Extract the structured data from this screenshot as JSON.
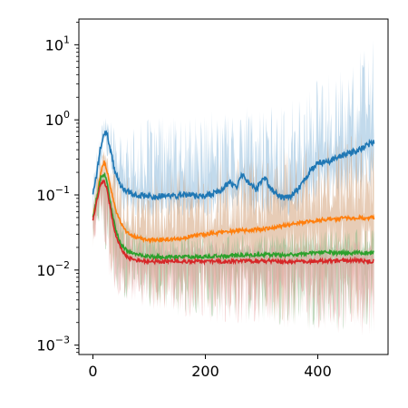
{
  "chart_data": {
    "type": "line",
    "title": "",
    "xlabel": "",
    "ylabel": "",
    "xlim": [
      -25,
      525
    ],
    "ylim": [
      0.00075,
      22
    ],
    "yscale": "log",
    "grid": false,
    "legend": null,
    "x_ticks": [
      {
        "value": 0,
        "label": "0"
      },
      {
        "value": 200,
        "label": "200"
      },
      {
        "value": 400,
        "label": "400"
      }
    ],
    "y_ticks": [
      {
        "value": 10,
        "base": "10",
        "exp": "1"
      },
      {
        "value": 1,
        "base": "10",
        "exp": "0"
      },
      {
        "value": 0.1,
        "base": "10",
        "exp": "−1"
      },
      {
        "value": 0.01,
        "base": "10",
        "exp": "−2"
      },
      {
        "value": 0.001,
        "base": "10",
        "exp": "−3"
      }
    ],
    "x_range": [
      0,
      500
    ],
    "series": [
      {
        "color": "#1f77b4",
        "band_color": "#aecde6",
        "points": [
          [
            0,
            0.1
          ],
          [
            8,
            0.22
          ],
          [
            14,
            0.45
          ],
          [
            20,
            0.68
          ],
          [
            26,
            0.6
          ],
          [
            32,
            0.36
          ],
          [
            40,
            0.2
          ],
          [
            50,
            0.13
          ],
          [
            60,
            0.11
          ],
          [
            80,
            0.1
          ],
          [
            100,
            0.095
          ],
          [
            130,
            0.097
          ],
          [
            160,
            0.1
          ],
          [
            190,
            0.095
          ],
          [
            210,
            0.1
          ],
          [
            230,
            0.12
          ],
          [
            245,
            0.15
          ],
          [
            255,
            0.12
          ],
          [
            265,
            0.19
          ],
          [
            275,
            0.15
          ],
          [
            290,
            0.12
          ],
          [
            305,
            0.17
          ],
          [
            320,
            0.11
          ],
          [
            340,
            0.09
          ],
          [
            355,
            0.1
          ],
          [
            370,
            0.13
          ],
          [
            385,
            0.2
          ],
          [
            400,
            0.27
          ],
          [
            420,
            0.28
          ],
          [
            440,
            0.33
          ],
          [
            460,
            0.37
          ],
          [
            480,
            0.42
          ],
          [
            500,
            0.52
          ]
        ],
        "band_upper": [
          [
            0,
            0.2
          ],
          [
            14,
            0.9
          ],
          [
            20,
            1.3
          ],
          [
            30,
            1.0
          ],
          [
            50,
            0.6
          ],
          [
            80,
            0.9
          ],
          [
            120,
            1.2
          ],
          [
            160,
            1.1
          ],
          [
            200,
            1.3
          ],
          [
            250,
            1.8
          ],
          [
            300,
            1.5
          ],
          [
            350,
            2.0
          ],
          [
            400,
            3.5
          ],
          [
            450,
            5.0
          ],
          [
            480,
            9.0
          ],
          [
            500,
            12.0
          ]
        ],
        "band_lower": [
          [
            0,
            0.05
          ],
          [
            14,
            0.2
          ],
          [
            20,
            0.35
          ],
          [
            30,
            0.2
          ],
          [
            50,
            0.06
          ],
          [
            80,
            0.05
          ],
          [
            120,
            0.05
          ],
          [
            160,
            0.05
          ],
          [
            200,
            0.05
          ],
          [
            250,
            0.06
          ],
          [
            300,
            0.05
          ],
          [
            350,
            0.05
          ],
          [
            400,
            0.08
          ],
          [
            450,
            0.09
          ],
          [
            500,
            0.12
          ]
        ]
      },
      {
        "color": "#ff7f0e",
        "band_color": "#d4a27a",
        "points": [
          [
            0,
            0.05
          ],
          [
            8,
            0.1
          ],
          [
            14,
            0.2
          ],
          [
            20,
            0.28
          ],
          [
            26,
            0.2
          ],
          [
            32,
            0.12
          ],
          [
            40,
            0.065
          ],
          [
            50,
            0.042
          ],
          [
            60,
            0.032
          ],
          [
            80,
            0.027
          ],
          [
            100,
            0.025
          ],
          [
            150,
            0.026
          ],
          [
            200,
            0.03
          ],
          [
            250,
            0.033
          ],
          [
            300,
            0.035
          ],
          [
            350,
            0.04
          ],
          [
            400,
            0.046
          ],
          [
            450,
            0.049
          ],
          [
            500,
            0.05
          ]
        ],
        "band_upper": [
          [
            0,
            0.12
          ],
          [
            14,
            0.35
          ],
          [
            20,
            0.4
          ],
          [
            30,
            0.3
          ],
          [
            50,
            0.2
          ],
          [
            100,
            0.2
          ],
          [
            200,
            0.3
          ],
          [
            300,
            0.4
          ],
          [
            400,
            0.5
          ],
          [
            450,
            0.8
          ],
          [
            500,
            1.0
          ]
        ],
        "band_lower": [
          [
            0,
            0.02
          ],
          [
            14,
            0.06
          ],
          [
            30,
            0.008
          ],
          [
            50,
            0.005
          ],
          [
            100,
            0.003
          ],
          [
            200,
            0.0025
          ],
          [
            300,
            0.002
          ],
          [
            400,
            0.0015
          ],
          [
            500,
            0.002
          ]
        ]
      },
      {
        "color": "#2ca02c",
        "band_color": "#8fb98a",
        "points": [
          [
            0,
            0.05
          ],
          [
            8,
            0.1
          ],
          [
            14,
            0.17
          ],
          [
            20,
            0.19
          ],
          [
            26,
            0.14
          ],
          [
            32,
            0.07
          ],
          [
            40,
            0.035
          ],
          [
            50,
            0.022
          ],
          [
            60,
            0.018
          ],
          [
            80,
            0.016
          ],
          [
            100,
            0.015
          ],
          [
            150,
            0.015
          ],
          [
            200,
            0.015
          ],
          [
            250,
            0.0155
          ],
          [
            300,
            0.016
          ],
          [
            350,
            0.016
          ],
          [
            400,
            0.017
          ],
          [
            450,
            0.017
          ],
          [
            500,
            0.017
          ]
        ],
        "band_upper": [
          [
            0,
            0.1
          ],
          [
            14,
            0.25
          ],
          [
            30,
            0.15
          ],
          [
            50,
            0.05
          ],
          [
            100,
            0.03
          ],
          [
            200,
            0.03
          ],
          [
            300,
            0.03
          ],
          [
            400,
            0.035
          ],
          [
            500,
            0.035
          ]
        ],
        "band_lower": [
          [
            0,
            0.02
          ],
          [
            14,
            0.05
          ],
          [
            30,
            0.006
          ],
          [
            50,
            0.004
          ],
          [
            100,
            0.003
          ],
          [
            200,
            0.002
          ],
          [
            300,
            0.002
          ],
          [
            400,
            0.0015
          ],
          [
            500,
            0.0015
          ]
        ]
      },
      {
        "color": "#d62728",
        "band_color": "#e8a4a4",
        "points": [
          [
            0,
            0.045
          ],
          [
            8,
            0.09
          ],
          [
            14,
            0.14
          ],
          [
            20,
            0.15
          ],
          [
            26,
            0.11
          ],
          [
            32,
            0.06
          ],
          [
            40,
            0.03
          ],
          [
            50,
            0.019
          ],
          [
            60,
            0.015
          ],
          [
            80,
            0.0135
          ],
          [
            100,
            0.013
          ],
          [
            150,
            0.013
          ],
          [
            200,
            0.013
          ],
          [
            250,
            0.013
          ],
          [
            300,
            0.0132
          ],
          [
            350,
            0.013
          ],
          [
            400,
            0.013
          ],
          [
            450,
            0.0135
          ],
          [
            500,
            0.013
          ]
        ],
        "band_upper": [
          [
            0,
            0.09
          ],
          [
            14,
            0.2
          ],
          [
            30,
            0.12
          ],
          [
            50,
            0.04
          ],
          [
            100,
            0.025
          ],
          [
            200,
            0.025
          ],
          [
            300,
            0.025
          ],
          [
            400,
            0.025
          ],
          [
            500,
            0.025
          ]
        ],
        "band_lower": [
          [
            0,
            0.02
          ],
          [
            14,
            0.05
          ],
          [
            30,
            0.006
          ],
          [
            50,
            0.004
          ],
          [
            100,
            0.003
          ],
          [
            200,
            0.002
          ],
          [
            300,
            0.0018
          ],
          [
            400,
            0.0014
          ],
          [
            500,
            0.0013
          ]
        ]
      }
    ]
  }
}
